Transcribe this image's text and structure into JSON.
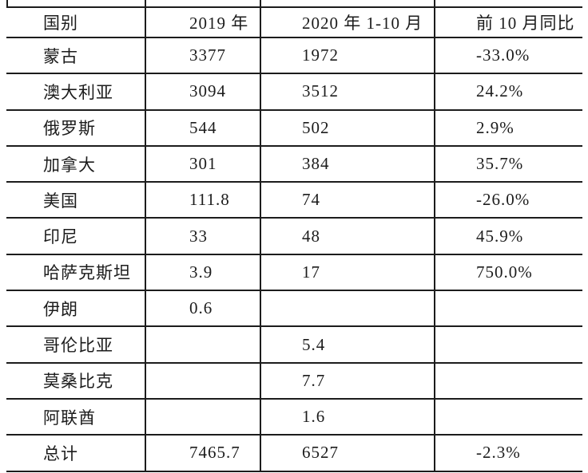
{
  "colors": {
    "background": "#ffffff",
    "rule_color": "#1c1c1c",
    "text_color": "#1c1c1c"
  },
  "chart_data": {
    "type": "table",
    "columns": [
      "国别",
      "2019 年",
      "2020 年 1-10 月",
      "前 10 月同比"
    ],
    "rows": [
      [
        "蒙古",
        "3377",
        "1972",
        "-33.0%"
      ],
      [
        "澳大利亚",
        "3094",
        "3512",
        "24.2%"
      ],
      [
        "俄罗斯",
        "544",
        "502",
        "2.9%"
      ],
      [
        "加拿大",
        "301",
        "384",
        "35.7%"
      ],
      [
        "美国",
        "111.8",
        "74",
        "-26.0%"
      ],
      [
        "印尼",
        "33",
        "48",
        "45.9%"
      ],
      [
        "哈萨克斯坦",
        "3.9",
        "17",
        "750.0%"
      ],
      [
        "伊朗",
        "0.6",
        "",
        ""
      ],
      [
        "哥伦比亚",
        "",
        "5.4",
        ""
      ],
      [
        "莫桑比克",
        "",
        "7.7",
        ""
      ],
      [
        "阿联酋",
        "",
        "1.6",
        ""
      ],
      [
        "总计",
        "7465.7",
        "6527",
        "-2.3%"
      ]
    ],
    "title": "",
    "notes": "grid rules on all row boundaries and between columns; no outer left/right border; table cropped at top (divider stubs visible above header rule)"
  }
}
